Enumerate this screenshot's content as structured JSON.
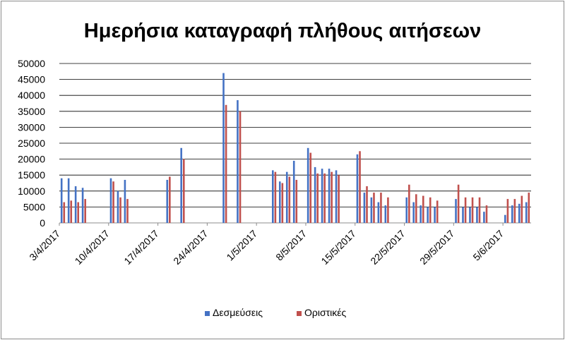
{
  "chart_data": {
    "type": "bar",
    "title": "Ημερήσια καταγραφή πλήθους αιτήσεων",
    "xlabel": "",
    "ylabel": "",
    "ylim": [
      0,
      50000
    ],
    "yticks": [
      0,
      5000,
      10000,
      15000,
      20000,
      25000,
      30000,
      35000,
      40000,
      45000,
      50000
    ],
    "grid": true,
    "legend_position": "bottom",
    "x_start": "2017-04-03",
    "x_end": "2017-06-09",
    "xticks": [
      "3/4/2017",
      "10/4/2017",
      "17/4/2017",
      "24/4/2017",
      "1/5/2017",
      "8/5/2017",
      "15/5/2017",
      "22/5/2017",
      "29/5/2017",
      "5/6/2017"
    ],
    "series": [
      {
        "name": "Δεσμεύσεις",
        "color": "#4472C4",
        "points": [
          {
            "date": "2017-04-03",
            "value": 14000
          },
          {
            "date": "2017-04-04",
            "value": 14000
          },
          {
            "date": "2017-04-05",
            "value": 11500
          },
          {
            "date": "2017-04-06",
            "value": 11000
          },
          {
            "date": "2017-04-10",
            "value": 14000
          },
          {
            "date": "2017-04-11",
            "value": 10000
          },
          {
            "date": "2017-04-12",
            "value": 13500
          },
          {
            "date": "2017-04-18",
            "value": 13500
          },
          {
            "date": "2017-04-20",
            "value": 23500
          },
          {
            "date": "2017-04-26",
            "value": 47000
          },
          {
            "date": "2017-04-28",
            "value": 38500
          },
          {
            "date": "2017-05-03",
            "value": 16500
          },
          {
            "date": "2017-05-04",
            "value": 13000
          },
          {
            "date": "2017-05-05",
            "value": 16000
          },
          {
            "date": "2017-05-06",
            "value": 19500
          },
          {
            "date": "2017-05-08",
            "value": 23500
          },
          {
            "date": "2017-05-09",
            "value": 17500
          },
          {
            "date": "2017-05-10",
            "value": 17000
          },
          {
            "date": "2017-05-11",
            "value": 17000
          },
          {
            "date": "2017-05-12",
            "value": 16500
          },
          {
            "date": "2017-05-15",
            "value": 21500
          },
          {
            "date": "2017-05-16",
            "value": 9500
          },
          {
            "date": "2017-05-17",
            "value": 8000
          },
          {
            "date": "2017-05-18",
            "value": 6500
          },
          {
            "date": "2017-05-19",
            "value": 5500
          },
          {
            "date": "2017-05-22",
            "value": 8000
          },
          {
            "date": "2017-05-23",
            "value": 6500
          },
          {
            "date": "2017-05-24",
            "value": 5500
          },
          {
            "date": "2017-05-25",
            "value": 5000
          },
          {
            "date": "2017-05-26",
            "value": 5000
          },
          {
            "date": "2017-05-29",
            "value": 7500
          },
          {
            "date": "2017-05-30",
            "value": 5000
          },
          {
            "date": "2017-05-31",
            "value": 5000
          },
          {
            "date": "2017-06-01",
            "value": 5000
          },
          {
            "date": "2017-06-02",
            "value": 3500
          },
          {
            "date": "2017-06-05",
            "value": 2500
          },
          {
            "date": "2017-06-06",
            "value": 5500
          },
          {
            "date": "2017-06-07",
            "value": 6000
          },
          {
            "date": "2017-06-08",
            "value": 6500
          }
        ]
      },
      {
        "name": "Οριστικές",
        "color": "#C0504D",
        "points": [
          {
            "date": "2017-04-03",
            "value": 6500
          },
          {
            "date": "2017-04-04",
            "value": 7000
          },
          {
            "date": "2017-04-05",
            "value": 6500
          },
          {
            "date": "2017-04-06",
            "value": 7500
          },
          {
            "date": "2017-04-10",
            "value": 13000
          },
          {
            "date": "2017-04-11",
            "value": 8000
          },
          {
            "date": "2017-04-12",
            "value": 7500
          },
          {
            "date": "2017-04-18",
            "value": 14500
          },
          {
            "date": "2017-04-20",
            "value": 20000
          },
          {
            "date": "2017-04-26",
            "value": 37000
          },
          {
            "date": "2017-04-28",
            "value": 35000
          },
          {
            "date": "2017-05-03",
            "value": 16000
          },
          {
            "date": "2017-05-04",
            "value": 12500
          },
          {
            "date": "2017-05-05",
            "value": 14500
          },
          {
            "date": "2017-05-06",
            "value": 13500
          },
          {
            "date": "2017-05-08",
            "value": 22000
          },
          {
            "date": "2017-05-09",
            "value": 15500
          },
          {
            "date": "2017-05-10",
            "value": 15500
          },
          {
            "date": "2017-05-11",
            "value": 16000
          },
          {
            "date": "2017-05-12",
            "value": 15000
          },
          {
            "date": "2017-05-15",
            "value": 22500
          },
          {
            "date": "2017-05-16",
            "value": 11500
          },
          {
            "date": "2017-05-17",
            "value": 9500
          },
          {
            "date": "2017-05-18",
            "value": 9500
          },
          {
            "date": "2017-05-19",
            "value": 8000
          },
          {
            "date": "2017-05-22",
            "value": 12000
          },
          {
            "date": "2017-05-23",
            "value": 9000
          },
          {
            "date": "2017-05-24",
            "value": 8500
          },
          {
            "date": "2017-05-25",
            "value": 8000
          },
          {
            "date": "2017-05-26",
            "value": 7000
          },
          {
            "date": "2017-05-29",
            "value": 12000
          },
          {
            "date": "2017-05-30",
            "value": 8000
          },
          {
            "date": "2017-05-31",
            "value": 8000
          },
          {
            "date": "2017-06-01",
            "value": 8000
          },
          {
            "date": "2017-06-02",
            "value": 5500
          },
          {
            "date": "2017-06-05",
            "value": 7500
          },
          {
            "date": "2017-06-06",
            "value": 7500
          },
          {
            "date": "2017-06-07",
            "value": 8500
          },
          {
            "date": "2017-06-08",
            "value": 9500
          }
        ]
      }
    ]
  }
}
